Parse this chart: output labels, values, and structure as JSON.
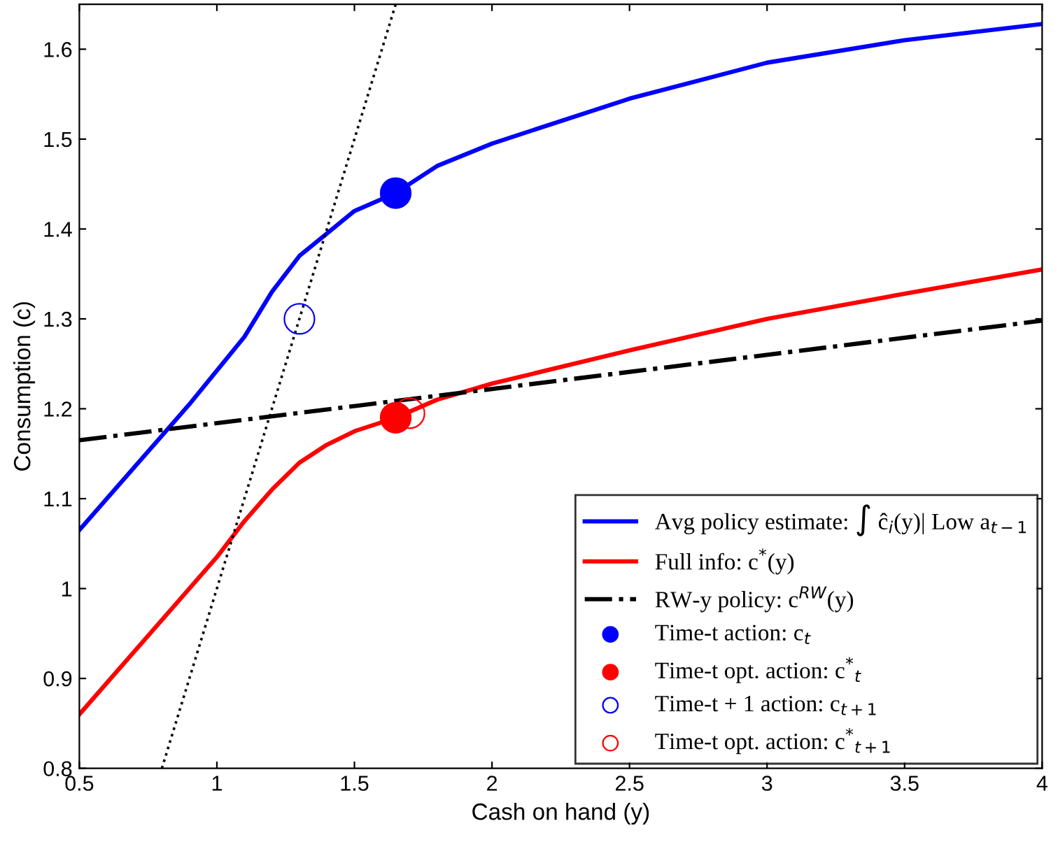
{
  "chart_data": {
    "type": "line",
    "xlabel": "Cash on hand (y)",
    "ylabel": "Consumption (c)",
    "xlim": [
      0.5,
      4
    ],
    "ylim": [
      0.8,
      1.65
    ],
    "xticks": [
      0.5,
      1,
      1.5,
      2,
      2.5,
      3,
      3.5,
      4
    ],
    "yticks": [
      0.8,
      0.9,
      1,
      1.1,
      1.2,
      1.3,
      1.4,
      1.5,
      1.6
    ],
    "grid": false,
    "legend": "bottom right",
    "series": [
      {
        "name": "Avg policy estimate: ∫ ĉ$_{i}$(y)| Low a$_{t−1}$",
        "color": "#0000ff",
        "line_style": "solid",
        "marker": "none",
        "x": [
          0.5,
          0.7,
          0.9,
          1.1,
          1.2,
          1.3,
          1.4,
          1.5,
          1.65,
          1.8,
          2.0,
          2.5,
          3.0,
          3.5,
          4.0
        ],
        "values": [
          1.065,
          1.135,
          1.205,
          1.28,
          1.33,
          1.37,
          1.395,
          1.42,
          1.44,
          1.47,
          1.495,
          1.545,
          1.585,
          1.61,
          1.628
        ]
      },
      {
        "name": "Full info: c$^{*}$(y)",
        "color": "#ff0000",
        "line_style": "solid",
        "marker": "none",
        "x": [
          0.5,
          0.7,
          0.9,
          1.0,
          1.1,
          1.2,
          1.3,
          1.4,
          1.5,
          1.65,
          1.8,
          2.0,
          2.5,
          3.0,
          3.5,
          4.0
        ],
        "values": [
          0.86,
          0.93,
          1.0,
          1.035,
          1.075,
          1.11,
          1.14,
          1.16,
          1.175,
          1.19,
          1.21,
          1.228,
          1.265,
          1.3,
          1.328,
          1.355
        ]
      },
      {
        "name": "RW-y policy: c$^{RW}$(y)",
        "color": "#000000",
        "line_style": "dashdot",
        "marker": "none",
        "x": [
          0.5,
          4.0
        ],
        "values": [
          1.165,
          1.298
        ]
      },
      {
        "name": "Time-t action: c$_{t}$",
        "color": "#0000ff",
        "type": "scatter",
        "marker": "circle",
        "x": [
          1.65
        ],
        "values": [
          1.44
        ]
      },
      {
        "name": "Time-t opt. action: c$^{*}$$_{t}$",
        "color": "#ff0000",
        "type": "scatter",
        "marker": "circle",
        "x": [
          1.65
        ],
        "values": [
          1.19
        ]
      },
      {
        "name": "Time-t + 1 action: c$_{t+1}$",
        "color": "#0000ff",
        "type": "scatter",
        "marker": "circle-open",
        "x": [
          1.3
        ],
        "values": [
          1.3
        ]
      },
      {
        "name": "Time-t opt. action: c$^{*}$$_{t+1}$",
        "color": "#ff0000",
        "type": "scatter",
        "marker": "circle-open",
        "x": [
          1.7
        ],
        "values": [
          1.195
        ]
      },
      {
        "color": "#000000",
        "line_style": "dotted",
        "marker": "none",
        "x": [
          0.8,
          1.65
        ],
        "values": [
          0.8,
          1.65
        ]
      }
    ]
  }
}
